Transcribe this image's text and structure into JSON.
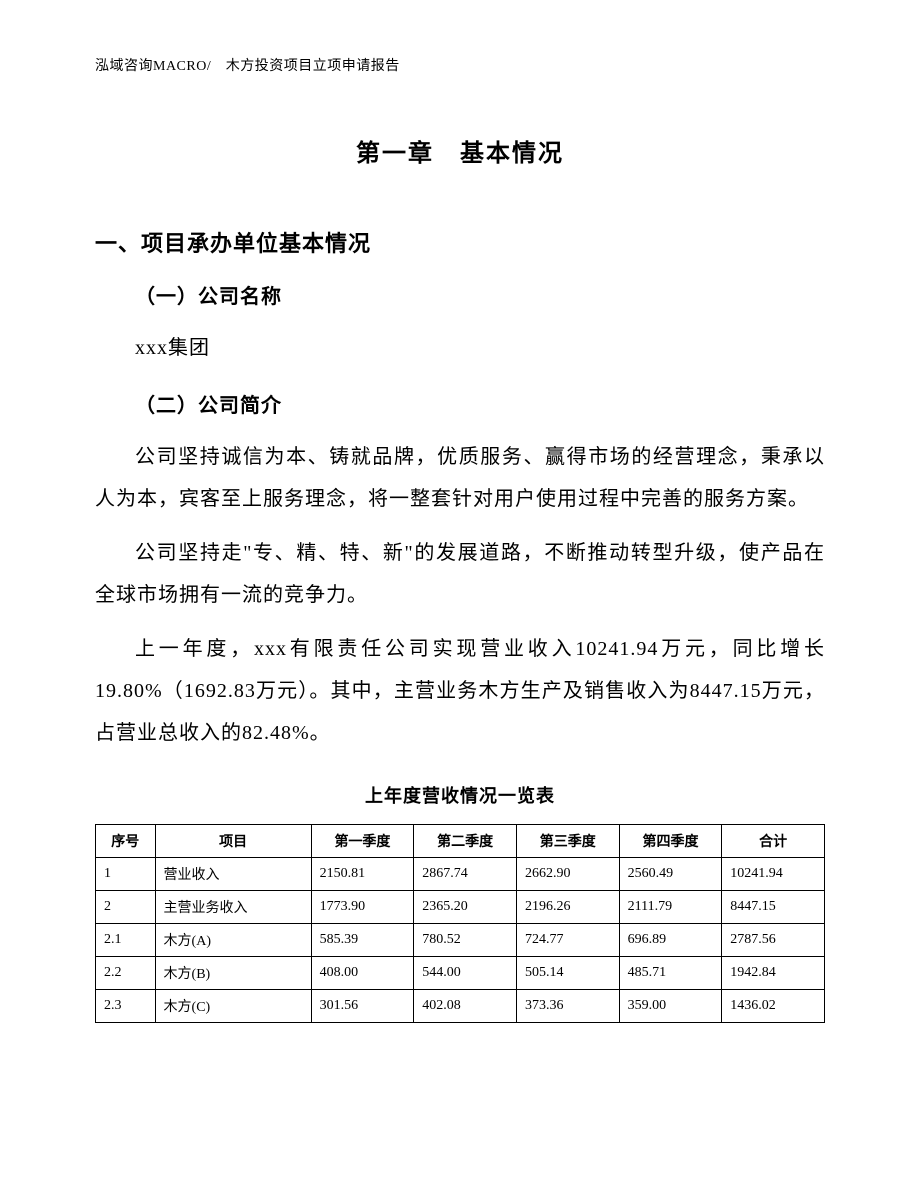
{
  "header": {
    "text": "泓域咨询MACRO/　木方投资项目立项申请报告"
  },
  "chapter": {
    "title": "第一章　基本情况"
  },
  "section1": {
    "heading": "一、项目承办单位基本情况",
    "sub1": {
      "heading": "（一）公司名称",
      "company": "xxx集团"
    },
    "sub2": {
      "heading": "（二）公司简介",
      "para1": "公司坚持诚信为本、铸就品牌，优质服务、赢得市场的经营理念，秉承以人为本，宾客至上服务理念，将一整套针对用户使用过程中完善的服务方案。",
      "para2": "公司坚持走\"专、精、特、新\"的发展道路，不断推动转型升级，使产品在全球市场拥有一流的竞争力。",
      "para3": "上一年度，xxx有限责任公司实现营业收入10241.94万元，同比增长19.80%（1692.83万元）。其中，主营业务木方生产及销售收入为8447.15万元，占营业总收入的82.48%。"
    }
  },
  "table": {
    "title": "上年度营收情况一览表",
    "columns": {
      "seq": "序号",
      "item": "项目",
      "q1": "第一季度",
      "q2": "第二季度",
      "q3": "第三季度",
      "q4": "第四季度",
      "total": "合计"
    },
    "column_widths": {
      "seq": 58,
      "item": 152,
      "q1": 100,
      "q2": 100,
      "q3": 100,
      "q4": 100,
      "total": 100
    },
    "header_align": "center",
    "cell_align": "left",
    "border_color": "#000000",
    "font_size": 14,
    "rows": [
      {
        "seq": "1",
        "item": "营业收入",
        "q1": "2150.81",
        "q2": "2867.74",
        "q3": "2662.90",
        "q4": "2560.49",
        "total": "10241.94"
      },
      {
        "seq": "2",
        "item": "主营业务收入",
        "q1": "1773.90",
        "q2": "2365.20",
        "q3": "2196.26",
        "q4": "2111.79",
        "total": "8447.15"
      },
      {
        "seq": "2.1",
        "item": "木方(A)",
        "q1": "585.39",
        "q2": "780.52",
        "q3": "724.77",
        "q4": "696.89",
        "total": "2787.56"
      },
      {
        "seq": "2.2",
        "item": "木方(B)",
        "q1": "408.00",
        "q2": "544.00",
        "q3": "505.14",
        "q4": "485.71",
        "total": "1942.84"
      },
      {
        "seq": "2.3",
        "item": "木方(C)",
        "q1": "301.56",
        "q2": "402.08",
        "q3": "373.36",
        "q4": "359.00",
        "total": "1436.02"
      }
    ]
  },
  "style": {
    "page_bg": "#ffffff",
    "text_color": "#000000",
    "body_font_size": 20,
    "body_line_height": 2.1,
    "chapter_font_size": 24,
    "h1_font_size": 22,
    "h2_font_size": 20,
    "table_title_font_size": 18,
    "header_font_size": 14
  }
}
